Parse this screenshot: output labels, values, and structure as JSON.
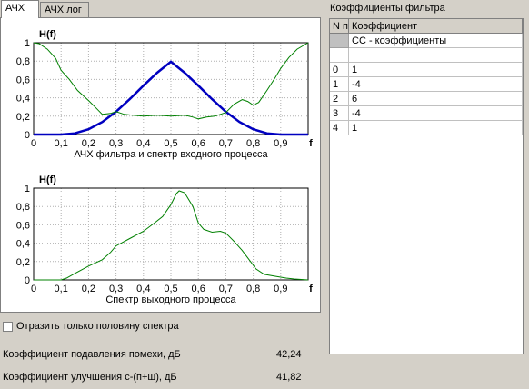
{
  "tabs": [
    "АЧХ",
    "АЧХ лог"
  ],
  "chart_data": [
    {
      "type": "line",
      "title": "H(f)",
      "xlabel": "АЧХ фильтра и спектр входного процесса",
      "xlim": [
        0,
        1
      ],
      "ylim": [
        0,
        1
      ],
      "x_ticks": [
        0,
        0.1,
        0.2,
        0.3,
        0.4,
        0.5,
        0.6,
        0.7,
        0.8,
        0.9
      ],
      "x_tick_labels": [
        "0",
        "0,1",
        "0,2",
        "0,3",
        "0,4",
        "0,5",
        "0,6",
        "0,7",
        "0,8",
        "0,9"
      ],
      "x_end_label": "f",
      "y_ticks": [
        0,
        0.2,
        0.4,
        0.6,
        0.8,
        1
      ],
      "y_tick_labels": [
        "0",
        "0,2",
        "0,4",
        "0,6",
        "0,8",
        "1"
      ],
      "grid": true,
      "series": [
        {
          "color": "#0000c0",
          "x": [
            0,
            0.1,
            0.15,
            0.2,
            0.25,
            0.3,
            0.35,
            0.4,
            0.45,
            0.5,
            0.55,
            0.6,
            0.65,
            0.7,
            0.75,
            0.8,
            0.85,
            0.9,
            1
          ],
          "y": [
            0,
            0,
            0.0127,
            0.0579,
            0.1365,
            0.2486,
            0.3853,
            0.5327,
            0.6731,
            0.7927,
            0.6731,
            0.5327,
            0.3853,
            0.2486,
            0.1365,
            0.0579,
            0.0127,
            0,
            0
          ]
        },
        {
          "color": "#008000",
          "x": [
            0,
            0.02,
            0.05,
            0.08,
            0.1,
            0.13,
            0.16,
            0.2,
            0.23,
            0.25,
            0.28,
            0.3,
            0.33,
            0.36,
            0.4,
            0.45,
            0.5,
            0.55,
            0.58,
            0.6,
            0.63,
            0.66,
            0.7,
            0.73,
            0.76,
            0.78,
            0.8,
            0.82,
            0.85,
            0.88,
            0.9,
            0.93,
            0.96,
            1
          ],
          "y": [
            1,
            0.99,
            0.93,
            0.83,
            0.7,
            0.6,
            0.48,
            0.37,
            0.28,
            0.22,
            0.23,
            0.25,
            0.22,
            0.21,
            0.2,
            0.21,
            0.2,
            0.21,
            0.19,
            0.17,
            0.19,
            0.2,
            0.24,
            0.33,
            0.38,
            0.36,
            0.32,
            0.35,
            0.48,
            0.62,
            0.72,
            0.84,
            0.93,
            1
          ]
        }
      ]
    },
    {
      "type": "line",
      "title": "H(f)",
      "xlabel": "Спектр выходного процесса",
      "xlim": [
        0,
        1
      ],
      "ylim": [
        0,
        1
      ],
      "x_ticks": [
        0,
        0.1,
        0.2,
        0.3,
        0.4,
        0.5,
        0.6,
        0.7,
        0.8,
        0.9
      ],
      "x_tick_labels": [
        "0",
        "0,1",
        "0,2",
        "0,3",
        "0,4",
        "0,5",
        "0,6",
        "0,7",
        "0,8",
        "0,9"
      ],
      "x_end_label": "f",
      "y_ticks": [
        0,
        0.2,
        0.4,
        0.6,
        0.8,
        1
      ],
      "y_tick_labels": [
        "0",
        "0,2",
        "0,4",
        "0,6",
        "0,8",
        "1"
      ],
      "grid": true,
      "series": [
        {
          "color": "#008000",
          "x": [
            0,
            0.1,
            0.12,
            0.15,
            0.2,
            0.25,
            0.28,
            0.3,
            0.35,
            0.4,
            0.44,
            0.47,
            0.5,
            0.52,
            0.53,
            0.55,
            0.58,
            0.6,
            0.62,
            0.65,
            0.68,
            0.7,
            0.73,
            0.76,
            0.79,
            0.81,
            0.84,
            0.88,
            0.92,
            0.95,
            1
          ],
          "y": [
            0,
            0,
            0.02,
            0.07,
            0.15,
            0.22,
            0.3,
            0.37,
            0.45,
            0.53,
            0.62,
            0.69,
            0.82,
            0.94,
            0.97,
            0.95,
            0.8,
            0.62,
            0.55,
            0.52,
            0.53,
            0.51,
            0.42,
            0.32,
            0.2,
            0.12,
            0.06,
            0.04,
            0.02,
            0.01,
            0
          ]
        }
      ]
    }
  ],
  "grid_panel": {
    "title": "Коэффициенты фильтра",
    "col_headers": [
      "N п/п",
      "Коэффициент"
    ],
    "sub_header": "CC - коэффициенты",
    "rows": [
      {
        "n": "0",
        "coef": "1"
      },
      {
        "n": "1",
        "coef": "-4"
      },
      {
        "n": "2",
        "coef": "6"
      },
      {
        "n": "3",
        "coef": "-4"
      },
      {
        "n": "4",
        "coef": "1"
      }
    ]
  },
  "checkbox": {
    "label": "Отразить только половину спектра",
    "checked": false
  },
  "results": [
    {
      "label": "Коэффициент подавления помехи, дБ",
      "value": "42,24"
    },
    {
      "label": "Коэффициент улучшения с-(п+ш), дБ",
      "value": "41,82"
    }
  ]
}
